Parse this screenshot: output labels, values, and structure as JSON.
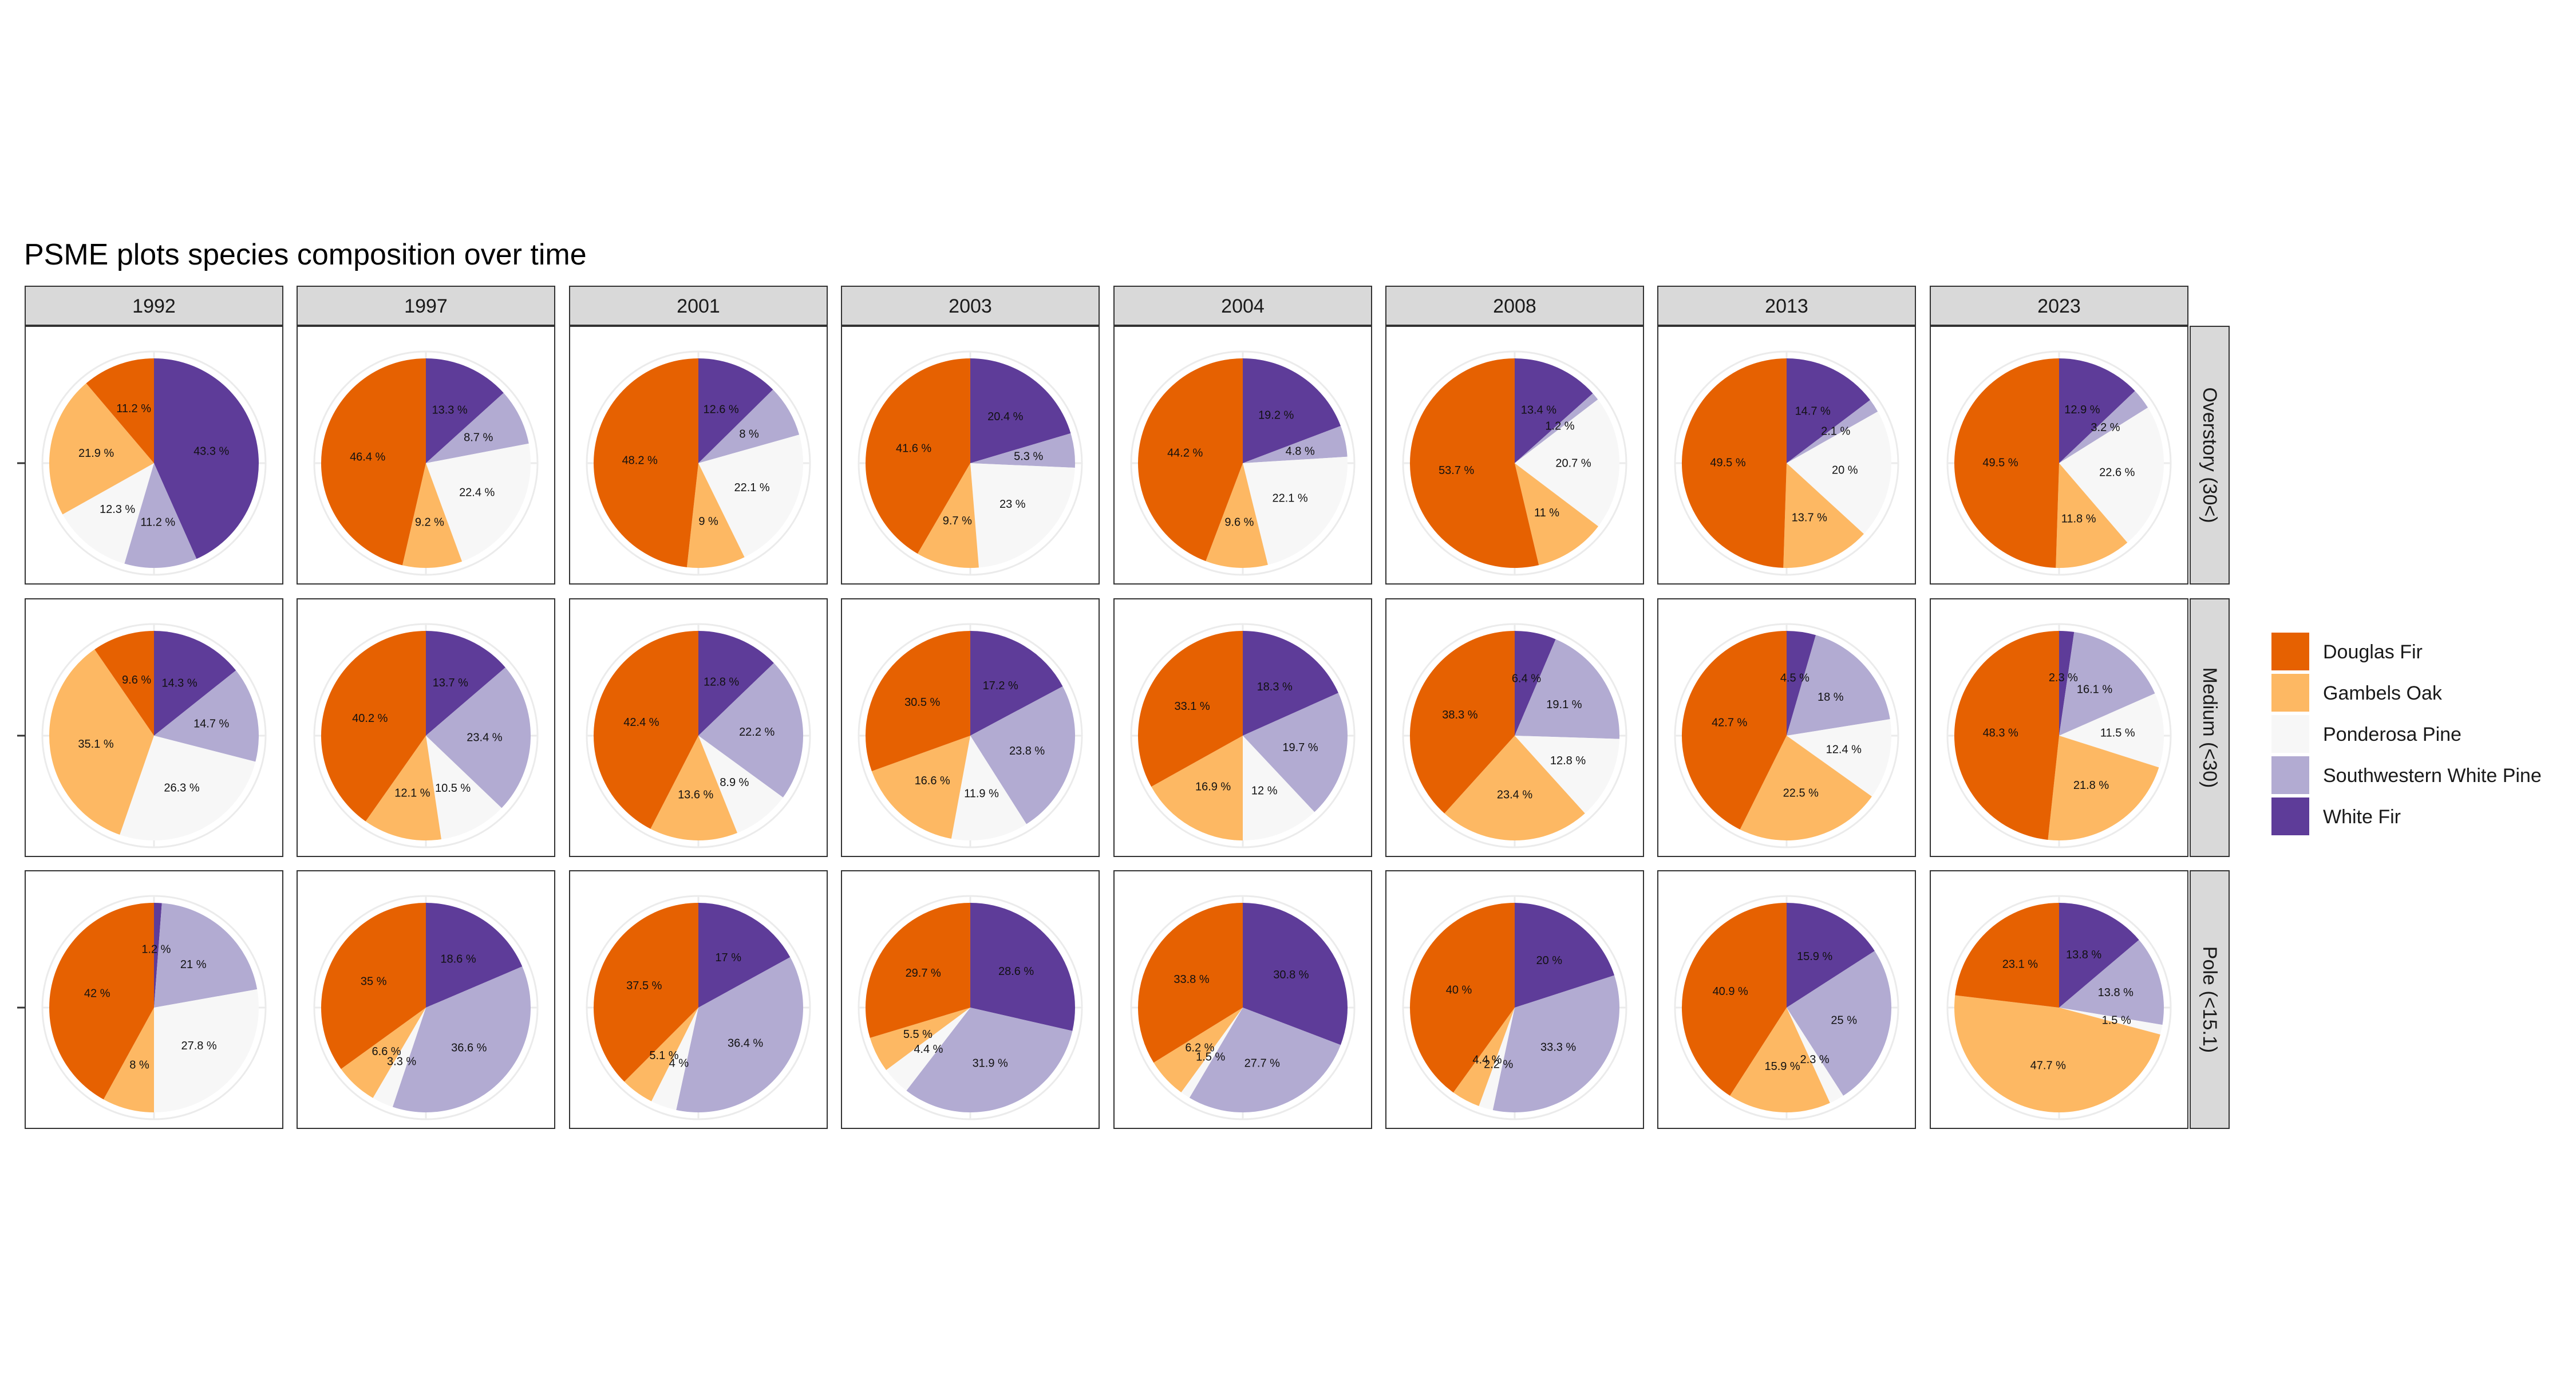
{
  "chart_data": {
    "type": "pie",
    "title": "PSME plots species composition over time",
    "columns": [
      "1992",
      "1997",
      "2001",
      "2003",
      "2004",
      "2008",
      "2013",
      "2023"
    ],
    "rows": [
      "Overstory (30<)",
      "Medium (<30)",
      "Pole (<15.1)"
    ],
    "species": [
      "Douglas Fir",
      "Gambels Oak",
      "Ponderosa Pine",
      "Southwestern White Pine",
      "White Fir"
    ],
    "colors": {
      "Douglas Fir": "#e66101",
      "Gambels Oak": "#fdb863",
      "Ponderosa Pine": "#f7f7f7",
      "Southwestern White Pine": "#b2abd2",
      "White Fir": "#5e3c99"
    },
    "slice_order_clockwise": [
      "White Fir",
      "Southwestern White Pine",
      "Ponderosa Pine",
      "Gambels Oak",
      "Douglas Fir"
    ],
    "legend_position": "right",
    "value_unit": "%",
    "pies": [
      [
        {
          "White Fir": 43.3,
          "Southwestern White Pine": 11.2,
          "Ponderosa Pine": 12.3,
          "Gambels Oak": 21.9,
          "Douglas Fir": 11.2
        },
        {
          "White Fir": 13.3,
          "Southwestern White Pine": 8.7,
          "Ponderosa Pine": 22.4,
          "Gambels Oak": 9.2,
          "Douglas Fir": 46.4
        },
        {
          "White Fir": 12.6,
          "Southwestern White Pine": 8,
          "Ponderosa Pine": 22.1,
          "Gambels Oak": 9,
          "Douglas Fir": 48.2
        },
        {
          "White Fir": 20.4,
          "Southwestern White Pine": 5.3,
          "Ponderosa Pine": 23,
          "Gambels Oak": 9.7,
          "Douglas Fir": 41.6
        },
        {
          "White Fir": 19.2,
          "Southwestern White Pine": 4.8,
          "Ponderosa Pine": 22.1,
          "Gambels Oak": 9.6,
          "Douglas Fir": 44.2
        },
        {
          "White Fir": 13.4,
          "Southwestern White Pine": 1.2,
          "Ponderosa Pine": 20.7,
          "Gambels Oak": 11,
          "Douglas Fir": 53.7
        },
        {
          "White Fir": 14.7,
          "Southwestern White Pine": 2.1,
          "Ponderosa Pine": 20,
          "Gambels Oak": 13.7,
          "Douglas Fir": 49.5
        },
        {
          "White Fir": 12.9,
          "Southwestern White Pine": 3.2,
          "Ponderosa Pine": 22.6,
          "Gambels Oak": 11.8,
          "Douglas Fir": 49.5
        }
      ],
      [
        {
          "White Fir": 14.3,
          "Southwestern White Pine": 14.7,
          "Ponderosa Pine": 26.3,
          "Gambels Oak": 35.1,
          "Douglas Fir": 9.6
        },
        {
          "White Fir": 13.7,
          "Southwestern White Pine": 23.4,
          "Ponderosa Pine": 10.5,
          "Gambels Oak": 12.1,
          "Douglas Fir": 40.2
        },
        {
          "White Fir": 12.8,
          "Southwestern White Pine": 22.2,
          "Ponderosa Pine": 8.9,
          "Gambels Oak": 13.6,
          "Douglas Fir": 42.4
        },
        {
          "White Fir": 17.2,
          "Southwestern White Pine": 23.8,
          "Ponderosa Pine": 11.9,
          "Gambels Oak": 16.6,
          "Douglas Fir": 30.5
        },
        {
          "White Fir": 18.3,
          "Southwestern White Pine": 19.7,
          "Ponderosa Pine": 12,
          "Gambels Oak": 16.9,
          "Douglas Fir": 33.1
        },
        {
          "White Fir": 6.4,
          "Southwestern White Pine": 19.1,
          "Ponderosa Pine": 12.8,
          "Gambels Oak": 23.4,
          "Douglas Fir": 38.3
        },
        {
          "White Fir": 4.5,
          "Southwestern White Pine": 18,
          "Ponderosa Pine": 12.4,
          "Gambels Oak": 22.5,
          "Douglas Fir": 42.7
        },
        {
          "White Fir": 2.3,
          "Southwestern White Pine": 16.1,
          "Ponderosa Pine": 11.5,
          "Gambels Oak": 21.8,
          "Douglas Fir": 48.3
        }
      ],
      [
        {
          "White Fir": 1.2,
          "Southwestern White Pine": 21,
          "Ponderosa Pine": 27.8,
          "Gambels Oak": 8,
          "Douglas Fir": 42
        },
        {
          "White Fir": 18.6,
          "Southwestern White Pine": 36.6,
          "Ponderosa Pine": 3.3,
          "Gambels Oak": 6.6,
          "Douglas Fir": 35
        },
        {
          "White Fir": 17,
          "Southwestern White Pine": 36.4,
          "Ponderosa Pine": 4,
          "Gambels Oak": 5.1,
          "Douglas Fir": 37.5
        },
        {
          "White Fir": 28.6,
          "Southwestern White Pine": 31.9,
          "Ponderosa Pine": 4.4,
          "Gambels Oak": 5.5,
          "Douglas Fir": 29.7
        },
        {
          "White Fir": 30.8,
          "Southwestern White Pine": 27.7,
          "Ponderosa Pine": 1.5,
          "Gambels Oak": 6.2,
          "Douglas Fir": 33.8
        },
        {
          "White Fir": 20,
          "Southwestern White Pine": 33.3,
          "Ponderosa Pine": 2.2,
          "Gambels Oak": 4.4,
          "Douglas Fir": 40
        },
        {
          "White Fir": 15.9,
          "Southwestern White Pine": 25,
          "Ponderosa Pine": 2.3,
          "Gambels Oak": 15.9,
          "Douglas Fir": 40.9
        },
        {
          "White Fir": 13.8,
          "Southwestern White Pine": 13.8,
          "Ponderosa Pine": 1.5,
          "Gambels Oak": 47.7,
          "Douglas Fir": 23.1
        }
      ]
    ]
  }
}
